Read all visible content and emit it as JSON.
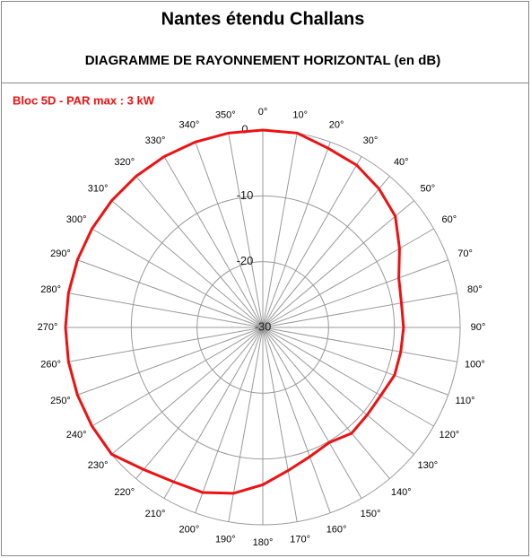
{
  "chart_data": {
    "type": "polar",
    "title": "Nantes étendu Challans",
    "subtitle": "DIAGRAMME DE RAYONNEMENT HORIZONTAL  (en dB)",
    "annotation": "Bloc 5D - PAR max : 3 kW",
    "categories": [
      "0°",
      "10°",
      "20°",
      "30°",
      "40°",
      "50°",
      "60°",
      "70°",
      "80°",
      "90°",
      "100°",
      "110°",
      "120°",
      "130°",
      "140°",
      "150°",
      "160°",
      "170°",
      "180°",
      "190°",
      "200°",
      "210°",
      "220°",
      "230°",
      "240°",
      "250°",
      "260°",
      "270°",
      "280°",
      "290°",
      "300°",
      "310°",
      "320°",
      "330°",
      "340°",
      "350°"
    ],
    "values": [
      0,
      0,
      -1,
      -1.5,
      -2.5,
      -3.7,
      -6,
      -8,
      -8.6,
      -8.6,
      -8.7,
      -8.7,
      -9.3,
      -9.3,
      -9,
      -9.8,
      -9.1,
      -7.9,
      -6.1,
      -4.4,
      -3.3,
      -2.9,
      -1.8,
      0,
      0,
      0,
      0,
      0,
      0,
      0,
      0,
      0,
      0,
      0,
      0,
      0
    ],
    "color": "#ee1111",
    "rlim": [
      -30,
      0
    ],
    "rticks": [
      0,
      -10,
      -20,
      -30
    ],
    "grid": true
  }
}
